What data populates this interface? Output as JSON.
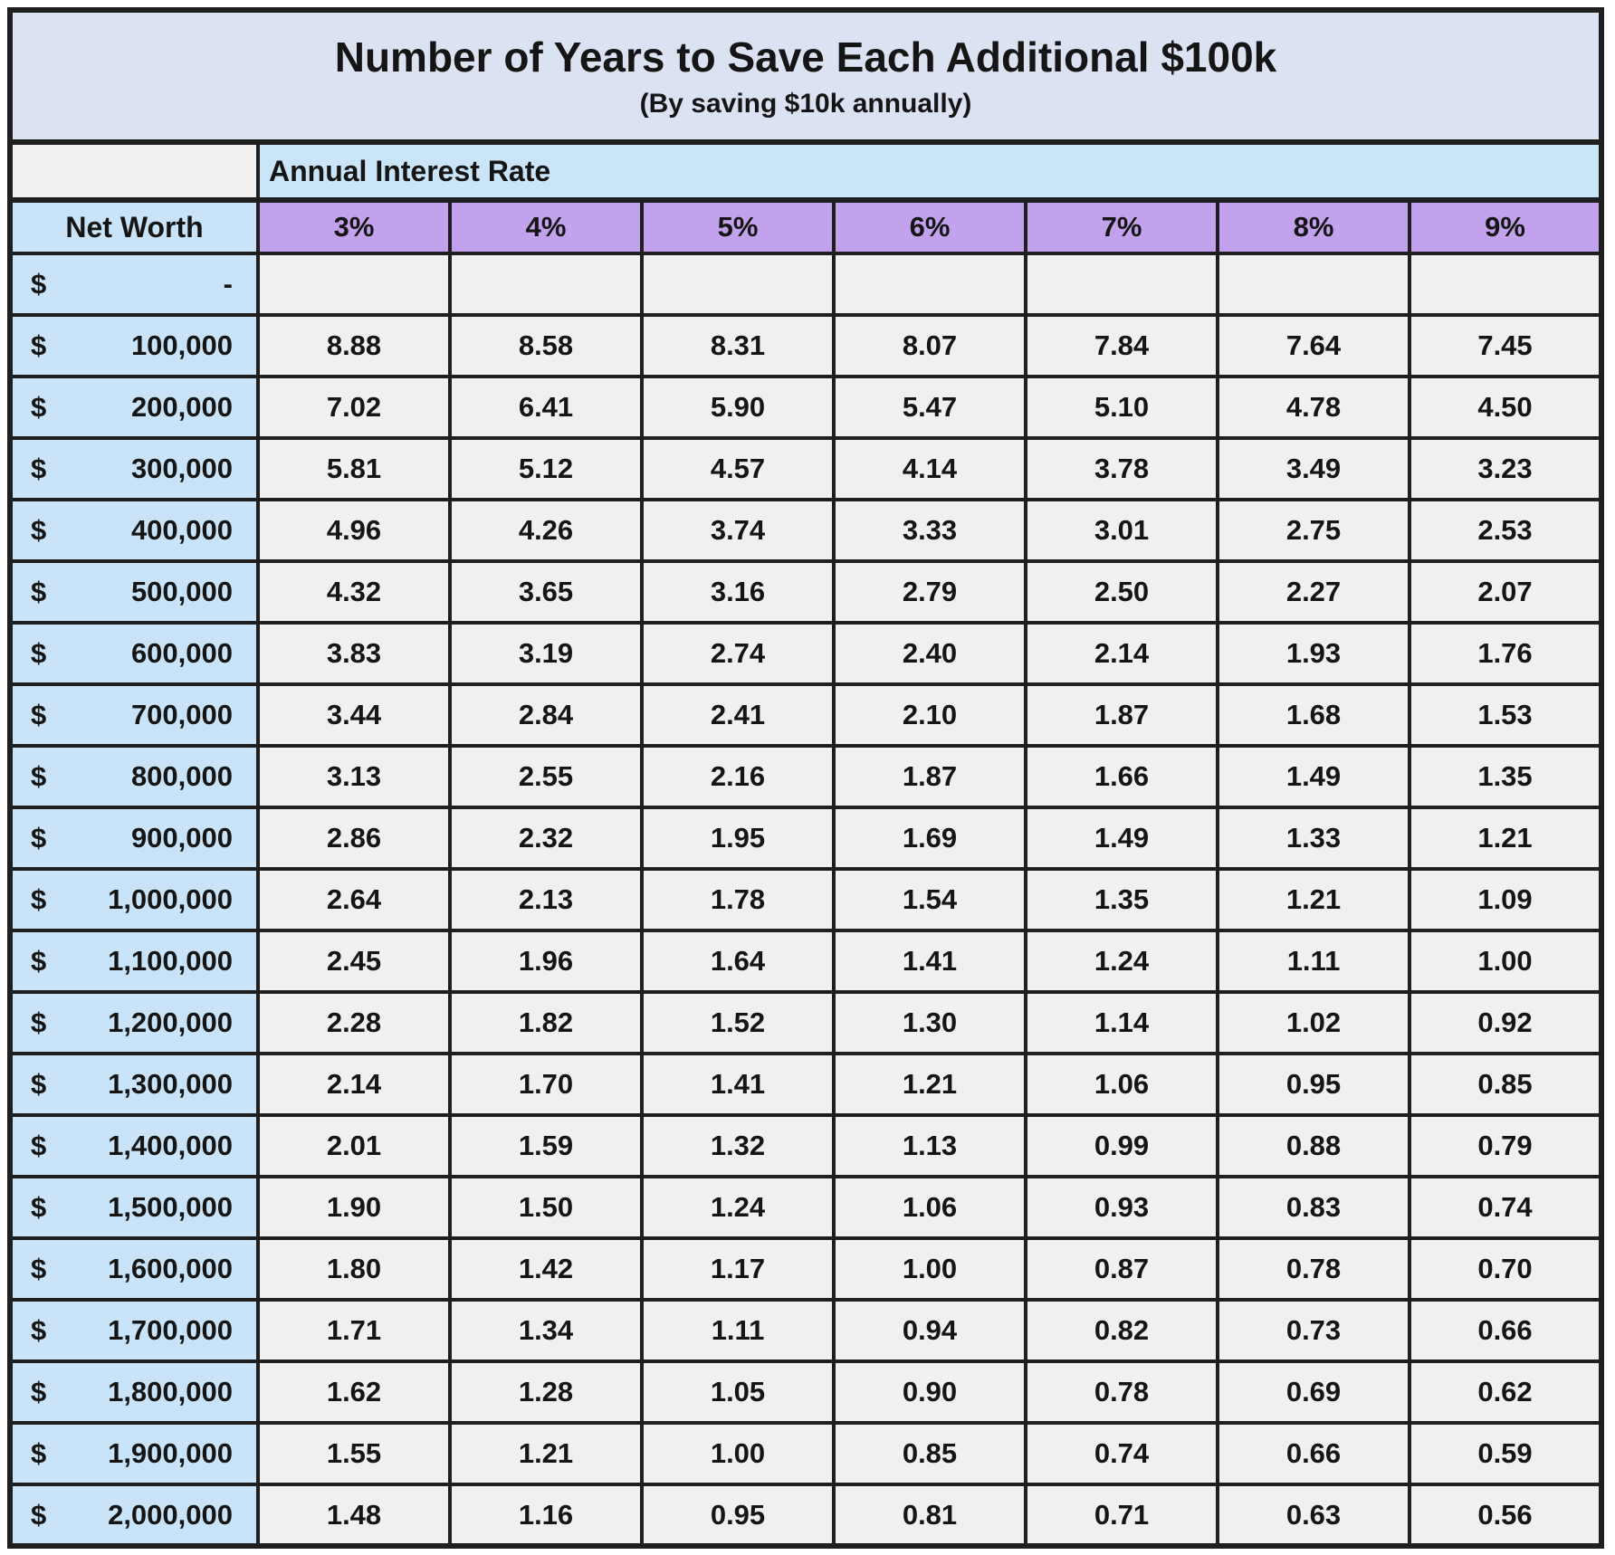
{
  "chart_data": {
    "type": "table",
    "title": "Number of Years to Save Each Additional $100k",
    "subtitle": "(By saving $10k annually)",
    "column_group_label": "Annual Interest Rate",
    "row_header_label": "Net Worth",
    "columns": [
      "3%",
      "4%",
      "5%",
      "6%",
      "7%",
      "8%",
      "9%"
    ],
    "rows": [
      {
        "currency": "$",
        "amount": "-",
        "values": [
          "",
          "",
          "",
          "",
          "",
          "",
          ""
        ]
      },
      {
        "currency": "$",
        "amount": "100,000",
        "values": [
          "8.88",
          "8.58",
          "8.31",
          "8.07",
          "7.84",
          "7.64",
          "7.45"
        ]
      },
      {
        "currency": "$",
        "amount": "200,000",
        "values": [
          "7.02",
          "6.41",
          "5.90",
          "5.47",
          "5.10",
          "4.78",
          "4.50"
        ]
      },
      {
        "currency": "$",
        "amount": "300,000",
        "values": [
          "5.81",
          "5.12",
          "4.57",
          "4.14",
          "3.78",
          "3.49",
          "3.23"
        ]
      },
      {
        "currency": "$",
        "amount": "400,000",
        "values": [
          "4.96",
          "4.26",
          "3.74",
          "3.33",
          "3.01",
          "2.75",
          "2.53"
        ]
      },
      {
        "currency": "$",
        "amount": "500,000",
        "values": [
          "4.32",
          "3.65",
          "3.16",
          "2.79",
          "2.50",
          "2.27",
          "2.07"
        ]
      },
      {
        "currency": "$",
        "amount": "600,000",
        "values": [
          "3.83",
          "3.19",
          "2.74",
          "2.40",
          "2.14",
          "1.93",
          "1.76"
        ]
      },
      {
        "currency": "$",
        "amount": "700,000",
        "values": [
          "3.44",
          "2.84",
          "2.41",
          "2.10",
          "1.87",
          "1.68",
          "1.53"
        ]
      },
      {
        "currency": "$",
        "amount": "800,000",
        "values": [
          "3.13",
          "2.55",
          "2.16",
          "1.87",
          "1.66",
          "1.49",
          "1.35"
        ]
      },
      {
        "currency": "$",
        "amount": "900,000",
        "values": [
          "2.86",
          "2.32",
          "1.95",
          "1.69",
          "1.49",
          "1.33",
          "1.21"
        ]
      },
      {
        "currency": "$",
        "amount": "1,000,000",
        "values": [
          "2.64",
          "2.13",
          "1.78",
          "1.54",
          "1.35",
          "1.21",
          "1.09"
        ]
      },
      {
        "currency": "$",
        "amount": "1,100,000",
        "values": [
          "2.45",
          "1.96",
          "1.64",
          "1.41",
          "1.24",
          "1.11",
          "1.00"
        ]
      },
      {
        "currency": "$",
        "amount": "1,200,000",
        "values": [
          "2.28",
          "1.82",
          "1.52",
          "1.30",
          "1.14",
          "1.02",
          "0.92"
        ]
      },
      {
        "currency": "$",
        "amount": "1,300,000",
        "values": [
          "2.14",
          "1.70",
          "1.41",
          "1.21",
          "1.06",
          "0.95",
          "0.85"
        ]
      },
      {
        "currency": "$",
        "amount": "1,400,000",
        "values": [
          "2.01",
          "1.59",
          "1.32",
          "1.13",
          "0.99",
          "0.88",
          "0.79"
        ]
      },
      {
        "currency": "$",
        "amount": "1,500,000",
        "values": [
          "1.90",
          "1.50",
          "1.24",
          "1.06",
          "0.93",
          "0.83",
          "0.74"
        ]
      },
      {
        "currency": "$",
        "amount": "1,600,000",
        "values": [
          "1.80",
          "1.42",
          "1.17",
          "1.00",
          "0.87",
          "0.78",
          "0.70"
        ]
      },
      {
        "currency": "$",
        "amount": "1,700,000",
        "values": [
          "1.71",
          "1.34",
          "1.11",
          "0.94",
          "0.82",
          "0.73",
          "0.66"
        ]
      },
      {
        "currency": "$",
        "amount": "1,800,000",
        "values": [
          "1.62",
          "1.28",
          "1.05",
          "0.90",
          "0.78",
          "0.69",
          "0.62"
        ]
      },
      {
        "currency": "$",
        "amount": "1,900,000",
        "values": [
          "1.55",
          "1.21",
          "1.00",
          "0.85",
          "0.74",
          "0.66",
          "0.59"
        ]
      },
      {
        "currency": "$",
        "amount": "2,000,000",
        "values": [
          "1.48",
          "1.16",
          "0.95",
          "0.81",
          "0.71",
          "0.63",
          "0.56"
        ]
      }
    ]
  },
  "colors": {
    "border": "#1f1f1f",
    "title_bg": "#dbe2f1",
    "group_bg": "#cbe5f8",
    "pct_bg": "#c3a2ed",
    "rowhead_bg": "#c9e4f8",
    "cell_bg": "#f0f0ee",
    "corner_bg": "#f1f1f0",
    "text": "#151515"
  }
}
